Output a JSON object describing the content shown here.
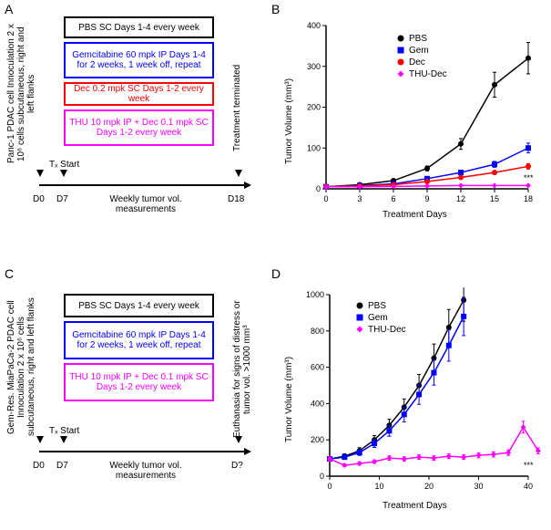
{
  "labels": {
    "A": "A",
    "B": "B",
    "C": "C",
    "D": "D"
  },
  "colors": {
    "pbs": "#000000",
    "gem": "#0000ff",
    "dec": "#ff0000",
    "thu": "#ff00ff",
    "axis": "#000000",
    "bg": "#ffffff"
  },
  "panelA": {
    "left_text": "Panc-1 PDAC cell Innoculation\n2 x 10⁶ cells subcutaneous,\nright and left flanks",
    "right_text": "Treatment terminated",
    "boxes": {
      "pbs": "PBS SC Days 1-4 every week",
      "gem": "Gemcitabine 60 mpk IP Days 1-4 for 2 weeks, 1 week off, repeat",
      "dec": "Dec 0.2 mpk SC Days 1-2 every week",
      "thu": "THU 10 mpk IP + Dec 0.1 mpk SC Days 1-2 every week"
    },
    "timeline": {
      "d0": "D0",
      "d7": "D7",
      "tx": "Tₓ Start",
      "mid": "Weekly tumor vol.\nmeasurements",
      "d18": "D18"
    }
  },
  "panelB": {
    "ylabel": "Tumor Volume (mm³)",
    "xlabel": "Treatment Days",
    "ylim": [
      0,
      400
    ],
    "ytick_step": 100,
    "xticks": [
      0,
      3,
      6,
      9,
      12,
      15,
      18
    ],
    "legend": [
      "PBS",
      "Gem",
      "Dec",
      "THU-Dec"
    ],
    "series": {
      "PBS": {
        "color": "#000000",
        "marker": "circle",
        "x": [
          0,
          3,
          6,
          9,
          12,
          15,
          18
        ],
        "y": [
          5,
          10,
          20,
          50,
          110,
          255,
          320
        ]
      },
      "Gem": {
        "color": "#0000ff",
        "marker": "square",
        "x": [
          0,
          3,
          6,
          9,
          12,
          15,
          18
        ],
        "y": [
          5,
          8,
          12,
          25,
          40,
          60,
          100
        ]
      },
      "Dec": {
        "color": "#ff0000",
        "marker": "circle",
        "x": [
          0,
          3,
          6,
          9,
          12,
          15,
          18
        ],
        "y": [
          5,
          7,
          10,
          18,
          28,
          40,
          55
        ]
      },
      "THU-Dec": {
        "color": "#ff00ff",
        "marker": "diamond",
        "x": [
          0,
          3,
          6,
          9,
          12,
          15,
          18
        ],
        "y": [
          5,
          5,
          6,
          7,
          8,
          8,
          8
        ]
      }
    },
    "significance": "***"
  },
  "panelC": {
    "left_text": "Gem-Res. MiaPaCa-2 PDAC cell\nInnoculation 2 x 10⁶ cells\nsubcutaneous, right and left flanks",
    "right_text": "Euthanasia for signs of distress\nor tumor vol. >1000 mm³",
    "boxes": {
      "pbs": "PBS SC Days 1-4 every week",
      "gem": "Gemcitabine 60 mpk IP Days 1-4 for 2 weeks, 1 week off, repeat",
      "thu": "THU 10 mpk IP + Dec 0.1 mpk SC Days 1-2 every week"
    },
    "timeline": {
      "d0": "D0",
      "d7": "D7",
      "tx": "Tₓ Start",
      "mid": "Weekly tumor vol.\nmeasurements",
      "dq": "D?"
    }
  },
  "panelD": {
    "ylabel": "Tumor Volume (mm³)",
    "xlabel": "Treatment Days",
    "ylim": [
      0,
      1000
    ],
    "ytick_step": 200,
    "xticks": [
      0,
      10,
      20,
      30,
      40
    ],
    "legend": [
      "PBS",
      "Gem",
      "THU-Dec"
    ],
    "series": {
      "PBS": {
        "color": "#000000",
        "marker": "circle",
        "x": [
          0,
          3,
          6,
          9,
          12,
          15,
          18,
          21,
          24,
          27
        ],
        "y": [
          95,
          110,
          140,
          200,
          280,
          380,
          500,
          650,
          820,
          970
        ]
      },
      "Gem": {
        "color": "#0000ff",
        "marker": "square",
        "x": [
          0,
          3,
          6,
          9,
          12,
          15,
          18,
          21,
          24,
          27
        ],
        "y": [
          95,
          105,
          130,
          180,
          250,
          340,
          450,
          570,
          720,
          880
        ]
      },
      "THU-Dec": {
        "color": "#ff00ff",
        "marker": "diamond",
        "x": [
          0,
          3,
          6,
          9,
          12,
          15,
          18,
          21,
          24,
          27,
          30,
          33,
          36,
          39,
          42
        ],
        "y": [
          95,
          60,
          70,
          80,
          100,
          95,
          105,
          100,
          110,
          105,
          115,
          120,
          130,
          270,
          140
        ]
      }
    },
    "significance": "***"
  }
}
